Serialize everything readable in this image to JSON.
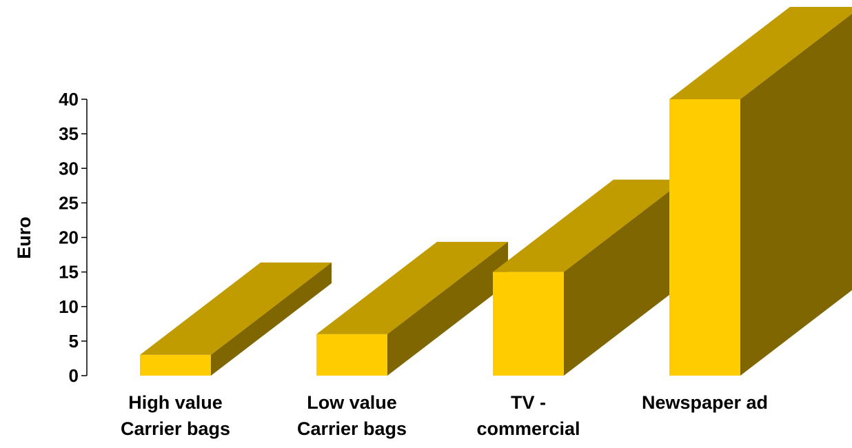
{
  "chart_data": {
    "type": "bar",
    "style": "3d",
    "categories": [
      [
        "High value",
        "Carrier bags"
      ],
      [
        "Low value",
        "Carrier bags"
      ],
      [
        "TV -",
        "commercial"
      ],
      [
        "Newspaper ad"
      ]
    ],
    "values": [
      3,
      6,
      15,
      40
    ],
    "title": "",
    "xlabel": "",
    "ylabel": "Euro",
    "ylim": [
      0,
      40
    ],
    "yticks": [
      "0",
      "5",
      "10",
      "15",
      "20",
      "25",
      "30",
      "35",
      "40"
    ],
    "grid": false,
    "legend": "none"
  },
  "colors": {
    "bar_front": "#FFCC00",
    "bar_top": "#C09C00",
    "bar_side": "#806600",
    "axis": "#000000"
  }
}
